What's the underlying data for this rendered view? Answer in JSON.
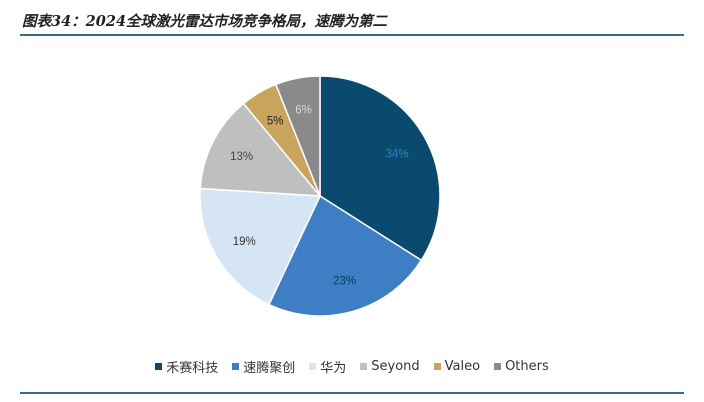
{
  "header": {
    "title": "图表34：2024全球激光雷达市场竞争格局，速腾为第二"
  },
  "chart_data": {
    "type": "pie",
    "title": "",
    "labels": [
      "禾赛科技",
      "速腾聚创",
      "华为",
      "Seyond",
      "Valeo",
      "Others"
    ],
    "values": [
      34,
      23,
      19,
      13,
      5,
      6
    ],
    "value_labels": [
      "34%",
      "23%",
      "19%",
      "13%",
      "5%",
      "6%"
    ],
    "colors": [
      "#0b4a6f",
      "#3e7ec4",
      "#d6e5f4",
      "#bfbfbf",
      "#c8a45c",
      "#8a8a8a"
    ],
    "label_colors": [
      "#2f7fc7",
      "#0b3a66",
      "#333333",
      "#444444",
      "#222222",
      "#d9d9d9"
    ],
    "start_angle_deg": 0,
    "direction": "clockwise",
    "legend_position": "bottom"
  }
}
